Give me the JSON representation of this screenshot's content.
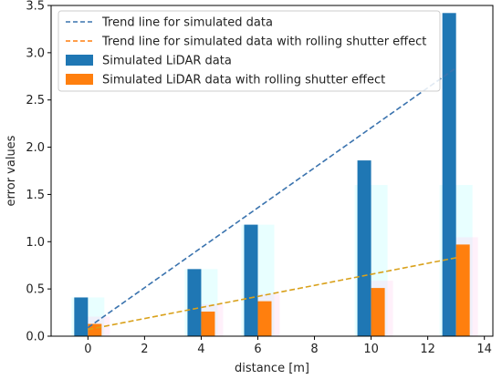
{
  "chart_data": {
    "type": "bar",
    "xlabel": "distance [m]",
    "ylabel": "error values",
    "xlim": [
      -1.3,
      14.3
    ],
    "ylim": [
      0,
      3.5
    ],
    "xticks": [
      0,
      2,
      4,
      6,
      8,
      10,
      12,
      14
    ],
    "yticks": [
      0.0,
      0.5,
      1.0,
      1.5,
      2.0,
      2.5,
      3.0,
      3.5
    ],
    "xtick_labels": [
      "0",
      "2",
      "4",
      "6",
      "8",
      "10",
      "12",
      "14"
    ],
    "ytick_labels": [
      "0.0",
      "0.5",
      "1.0",
      "1.5",
      "2.0",
      "2.5",
      "3.0",
      "3.5"
    ],
    "grid": false,
    "legend_position": "top-left",
    "x": [
      0,
      4,
      6,
      10,
      13
    ],
    "series": [
      {
        "name": "Simulated LiDAR data",
        "kind": "bar",
        "color": "#1f77b4",
        "values": [
          0.41,
          0.71,
          1.18,
          1.86,
          3.42
        ]
      },
      {
        "name": "Simulated LiDAR data with rolling shutter effect",
        "kind": "bar",
        "color": "#ff7f0e",
        "values": [
          0.13,
          0.26,
          0.37,
          0.51,
          0.97
        ]
      },
      {
        "name": "Trend line for simulated data",
        "kind": "trend",
        "color": "#1f77b4",
        "style": "dashed",
        "x": [
          0,
          13
        ],
        "y": [
          0.09,
          2.84
        ]
      },
      {
        "name": "Trend line for simulated data with rolling shutter effect",
        "kind": "trend",
        "color": "#ff7f0e",
        "style": "dashed",
        "x": [
          0,
          13
        ],
        "y": [
          0.07,
          0.83
        ]
      }
    ],
    "legend": [
      "Trend line for simulated data",
      "Trend line for simulated data with rolling shutter effect",
      "Simulated LiDAR data",
      "Simulated LiDAR data with rolling shutter effect"
    ]
  }
}
